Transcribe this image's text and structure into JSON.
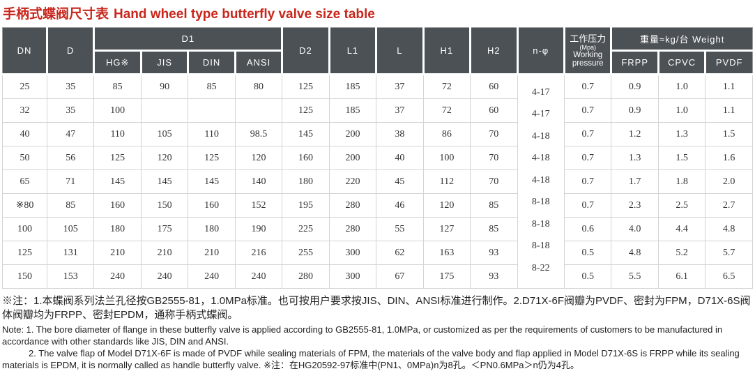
{
  "title": {
    "zh": "手柄式蝶阀尺寸表",
    "en": "Hand wheel type butterfly valve size table"
  },
  "table": {
    "headers": {
      "dn": "DN",
      "d": "D",
      "d1_group": "D1",
      "hg": "HG※",
      "jis": "JIS",
      "din": "DIN",
      "ansi": "ANSI",
      "d2": "D2",
      "l1": "L1",
      "l": "L",
      "h1": "H1",
      "h2": "H2",
      "n_phi": "n-φ",
      "wp_zh": "工作压力",
      "wp_unit": "(Mpa)",
      "wp_en": "Working pressure",
      "weight_group": "重量≈kg/台 Weight",
      "frpp": "FRPP",
      "cpvc": "CPVC",
      "pvdf": "PVDF"
    },
    "column_keys": [
      "dn",
      "d",
      "d1-hg",
      "d1-jis",
      "d1-din",
      "d1-ansi",
      "d2",
      "l1",
      "l",
      "h1",
      "h2",
      "n-phi",
      "working-pressure",
      "frpp",
      "cpvc",
      "pvdf"
    ],
    "rows": [
      [
        "25",
        "35",
        "85",
        "90",
        "85",
        "80",
        "125",
        "185",
        "37",
        "72",
        "60",
        "4-17",
        "0.7",
        "0.9",
        "1.0",
        "1.1"
      ],
      [
        "32",
        "35",
        "100",
        "",
        "",
        "",
        "125",
        "185",
        "37",
        "72",
        "60",
        "4-17",
        "0.7",
        "0.9",
        "1.0",
        "1.1"
      ],
      [
        "40",
        "47",
        "110",
        "105",
        "110",
        "98.5",
        "145",
        "200",
        "38",
        "86",
        "70",
        "4-18",
        "0.7",
        "1.2",
        "1.3",
        "1.5"
      ],
      [
        "50",
        "56",
        "125",
        "120",
        "125",
        "120",
        "160",
        "200",
        "40",
        "100",
        "70",
        "4-18",
        "0.7",
        "1.3",
        "1.5",
        "1.6"
      ],
      [
        "65",
        "71",
        "145",
        "145",
        "145",
        "140",
        "180",
        "220",
        "45",
        "112",
        "70",
        "4-18",
        "0.7",
        "1.7",
        "1.8",
        "2.0"
      ],
      [
        "※80",
        "85",
        "160",
        "150",
        "160",
        "152",
        "195",
        "280",
        "46",
        "120",
        "85",
        "8-18",
        "0.7",
        "2.3",
        "2.5",
        "2.7"
      ],
      [
        "100",
        "105",
        "180",
        "175",
        "180",
        "190",
        "225",
        "280",
        "55",
        "127",
        "85",
        "8-18",
        "0.6",
        "4.0",
        "4.4",
        "4.8"
      ],
      [
        "125",
        "131",
        "210",
        "210",
        "210",
        "216",
        "255",
        "300",
        "62",
        "163",
        "93",
        "8-18",
        "0.5",
        "4.8",
        "5.2",
        "5.7"
      ],
      [
        "150",
        "153",
        "240",
        "240",
        "240",
        "240",
        "280",
        "300",
        "67",
        "175",
        "93",
        "8-22",
        "0.5",
        "5.5",
        "6.1",
        "6.5"
      ]
    ]
  },
  "notes": {
    "zh": "※注：1.本蝶阀系列法兰孔径按GB2555-81，1.0MPa标准。也可按用户要求按JIS、DIN、ANSI标准进行制作。2.D71X-6F阀瓣为PVDF、密封为FPM，D71X-6S阀体阀瓣均为FRPP、密封EPDM，通称手柄式蝶阀。",
    "en1": "Note: 1. The bore diameter of flange in these butterfly valve is applied according to GB2555-81, 1.0MPa, or customized as per the requirements of customers to be manufactured in accordance with other standards like JIS, DIN and ANSI.",
    "en2": "2. The valve flap of Model D71X-6F is made of PVDF while sealing materials of FPM, the materials of the valve body and flap applied in Model D71X-6S is FRPP while its sealing materials is EPDM, it is normally called as handle butterfly valve. ※注：在HG20592-97标准中(PN1、0MPa)n为8孔。＜PN0.6MPa＞n仍为4孔。"
  },
  "colors": {
    "title_red": "#c8271c",
    "header_bg": "#4c5156",
    "header_text": "#ffffff",
    "grid_line": "#d4d4d4",
    "cell_text": "#333333"
  }
}
